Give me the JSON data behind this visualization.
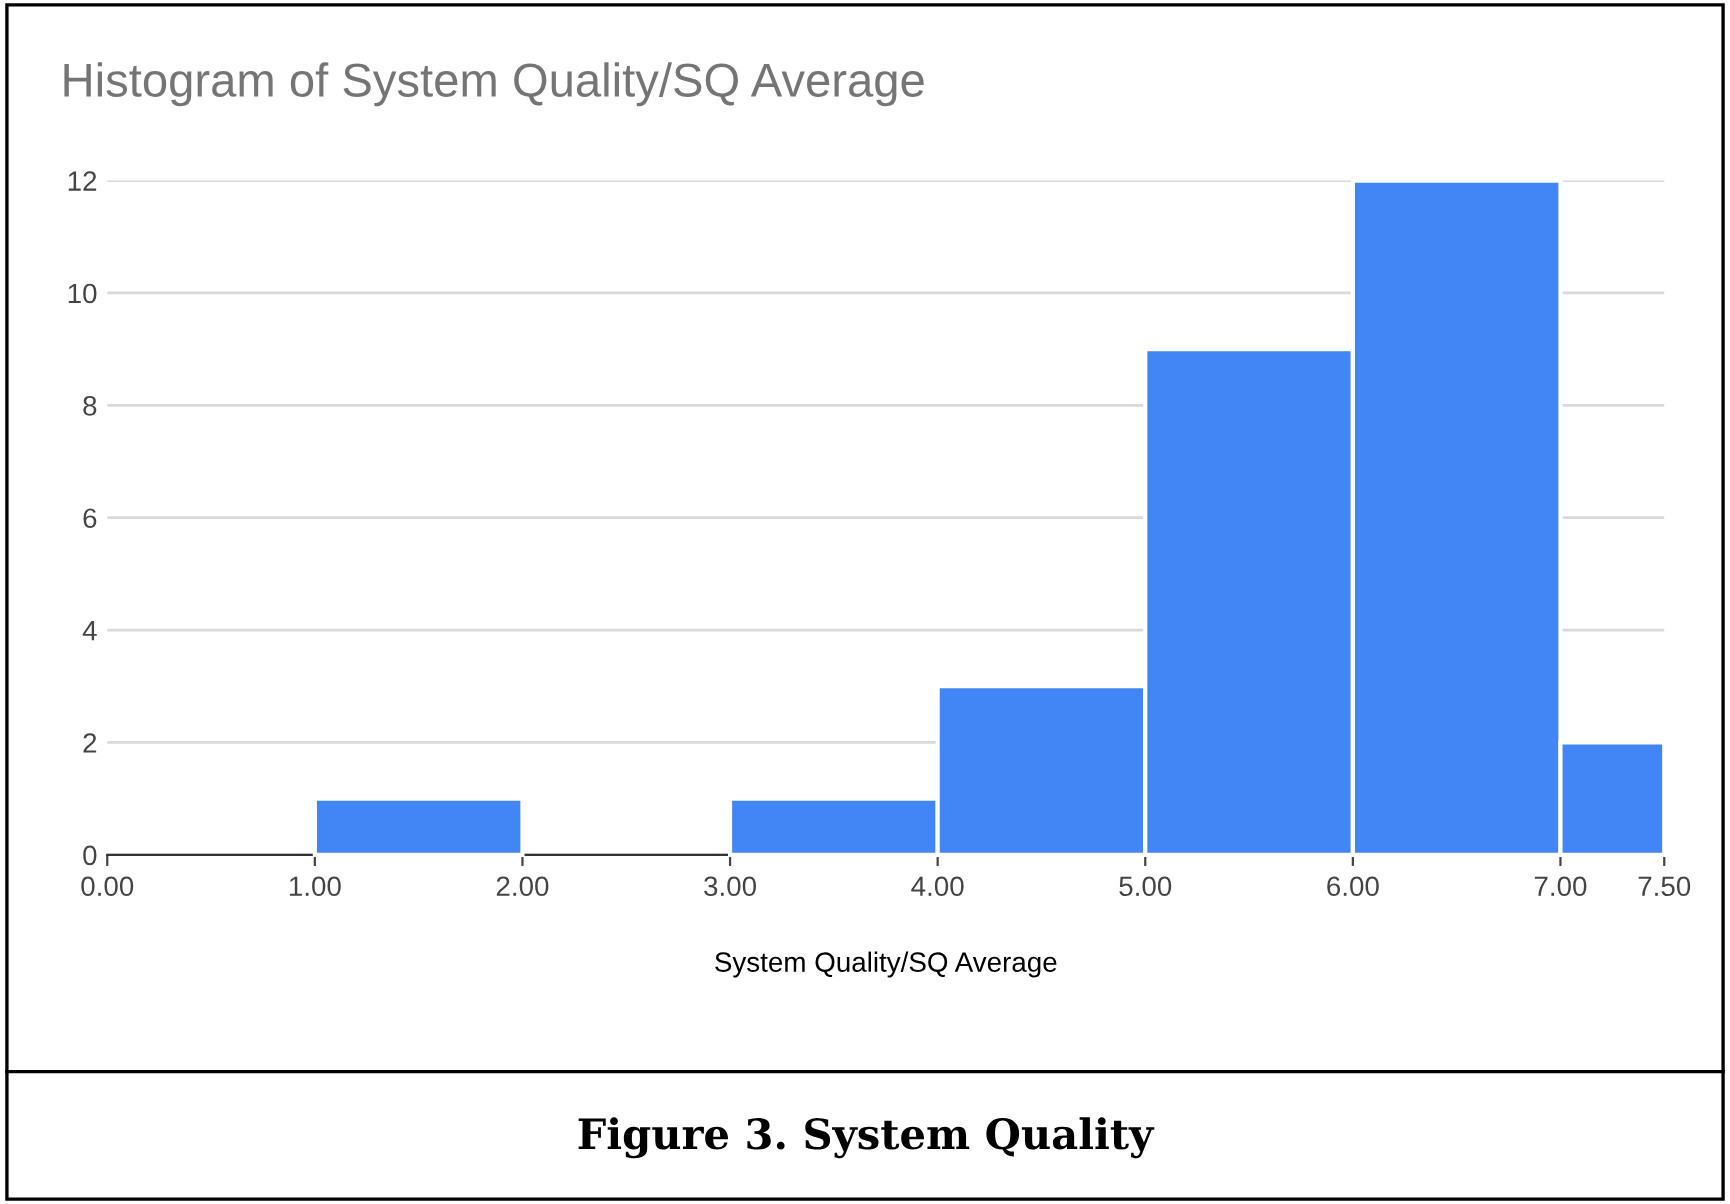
{
  "chart_data": {
    "type": "histogram",
    "title": "Histogram of System Quality/SQ Average",
    "xlabel": "System Quality/SQ Average",
    "bins": [
      1,
      2,
      3,
      4,
      5,
      6,
      7,
      7.5
    ],
    "values": [
      1,
      0,
      1,
      3,
      9,
      12,
      2
    ],
    "color": "#4285f4",
    "xlim": [
      0,
      7.5
    ],
    "xticks": [
      {
        "value": 0,
        "label": "0.00"
      },
      {
        "value": 1,
        "label": "1.00"
      },
      {
        "value": 2,
        "label": "2.00"
      },
      {
        "value": 3,
        "label": "3.00"
      },
      {
        "value": 4,
        "label": "4.00"
      },
      {
        "value": 5,
        "label": "5.00"
      },
      {
        "value": 6,
        "label": "6.00"
      },
      {
        "value": 7,
        "label": "7.00"
      },
      {
        "value": 7.5,
        "label": "7.50"
      }
    ],
    "ylim": [
      0,
      12
    ],
    "yticks": [
      0,
      2,
      4,
      6,
      8,
      10,
      12
    ],
    "grid": "y",
    "annotations": [
      "Figure 3. System Quality"
    ]
  }
}
